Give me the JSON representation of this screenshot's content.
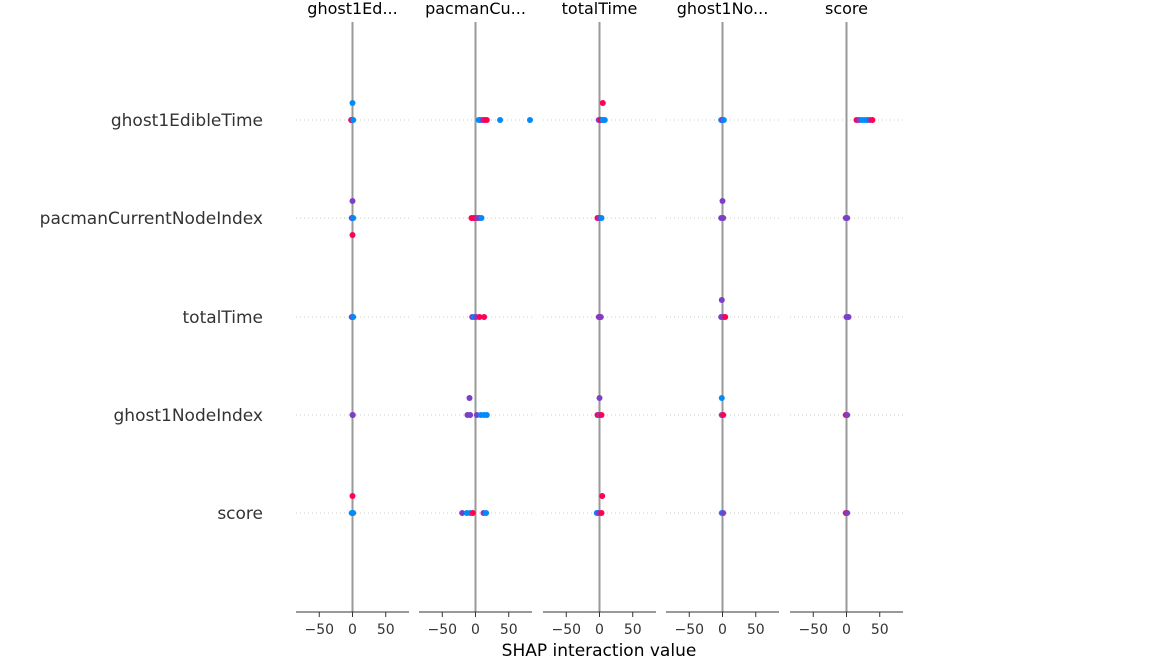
{
  "chart_data": {
    "type": "scatter",
    "xlabel": "SHAP interaction value",
    "features": [
      "ghost1EdibleTime",
      "pacmanCurrentNodeIndex",
      "totalTime",
      "ghost1NodeIndex",
      "score"
    ],
    "panel_titles": [
      "ghost1Ed...",
      "pacmanCu...",
      "totalTime",
      "ghost1No...",
      "score"
    ],
    "xlim": [
      -85,
      85
    ],
    "xticks": [
      -50,
      0,
      50
    ],
    "xtick_labels": [
      "−50",
      "0",
      "50"
    ],
    "grid": true,
    "colors": {
      "low": "#008bfb",
      "mid": "#7b3fc8",
      "high": "#ff0052",
      "zero_line": "#999999"
    },
    "panels": [
      {
        "title": "ghost1Ed...",
        "rows": [
          [
            [
              0,
              0.0,
              "low"
            ],
            [
              0,
              1.0,
              "low"
            ],
            [
              -2,
              0.0,
              "high"
            ],
            [
              1,
              0.0,
              "low"
            ]
          ],
          [
            [
              0,
              1.0,
              "mid"
            ],
            [
              0,
              0.0,
              "low"
            ],
            [
              -1,
              0.0,
              "mid"
            ],
            [
              1,
              0.0,
              "low"
            ],
            [
              0,
              -1.0,
              "high"
            ]
          ],
          [
            [
              0,
              0.0,
              "low"
            ],
            [
              -1,
              0.0,
              "mid"
            ],
            [
              1,
              0.0,
              "low"
            ]
          ],
          [
            [
              0,
              0.0,
              "mid"
            ],
            [
              0.5,
              0.0,
              "mid"
            ]
          ],
          [
            [
              0,
              1.0,
              "high"
            ],
            [
              0,
              0.0,
              "low"
            ],
            [
              -1,
              0.0,
              "low"
            ],
            [
              1,
              0.0,
              "low"
            ]
          ]
        ]
      },
      {
        "title": "pacmanCu...",
        "rows": [
          [
            [
              5,
              0.0,
              "low"
            ],
            [
              8,
              0.0,
              "low"
            ],
            [
              11,
              0.0,
              "mid"
            ],
            [
              14,
              0.0,
              "high"
            ],
            [
              17,
              0.0,
              "high"
            ],
            [
              37,
              0.0,
              "low"
            ],
            [
              82,
              0.0,
              "low"
            ]
          ],
          [
            [
              -6,
              0.0,
              "high"
            ],
            [
              -3,
              0.0,
              "high"
            ],
            [
              0,
              0.0,
              "high"
            ],
            [
              3,
              0.0,
              "mid"
            ],
            [
              6,
              0.0,
              "mid"
            ],
            [
              9,
              0.0,
              "low"
            ]
          ],
          [
            [
              -5,
              0.0,
              "mid"
            ],
            [
              -2,
              0.0,
              "low"
            ],
            [
              1,
              0.0,
              "mid"
            ],
            [
              6,
              0.0,
              "high"
            ],
            [
              13,
              0.0,
              "high"
            ]
          ],
          [
            [
              -9,
              1.0,
              "mid"
            ],
            [
              -12,
              0.0,
              "mid"
            ],
            [
              -8,
              0.0,
              "mid"
            ],
            [
              2,
              0.0,
              "mid"
            ],
            [
              8,
              0.0,
              "low"
            ],
            [
              13,
              0.0,
              "low"
            ],
            [
              17,
              0.0,
              "low"
            ]
          ],
          [
            [
              -20,
              0.0,
              "mid"
            ],
            [
              -13,
              0.0,
              "low"
            ],
            [
              -8,
              0.0,
              "low"
            ],
            [
              -4,
              0.0,
              "high"
            ],
            [
              12,
              0.0,
              "mid"
            ],
            [
              16,
              0.0,
              "low"
            ]
          ]
        ]
      },
      {
        "title": "totalTime",
        "rows": [
          [
            [
              5,
              1.0,
              "high"
            ],
            [
              -1,
              0.0,
              "mid"
            ],
            [
              2,
              0.0,
              "high"
            ],
            [
              5,
              0.0,
              "low"
            ],
            [
              8,
              0.0,
              "low"
            ]
          ],
          [
            [
              -3,
              0.0,
              "high"
            ],
            [
              0,
              0.0,
              "mid"
            ],
            [
              3,
              0.0,
              "low"
            ]
          ],
          [
            [
              -1,
              0.0,
              "mid"
            ],
            [
              1,
              0.0,
              "high"
            ],
            [
              2,
              0.0,
              "mid"
            ]
          ],
          [
            [
              0,
              1.0,
              "mid"
            ],
            [
              -3,
              0.0,
              "high"
            ],
            [
              0,
              0.0,
              "mid"
            ],
            [
              3,
              0.0,
              "high"
            ]
          ],
          [
            [
              4,
              1.0,
              "high"
            ],
            [
              -4,
              0.0,
              "low"
            ],
            [
              -1,
              0.0,
              "mid"
            ],
            [
              3,
              0.0,
              "high"
            ]
          ]
        ]
      },
      {
        "title": "ghost1No...",
        "rows": [
          [
            [
              -2,
              0.0,
              "low"
            ],
            [
              0,
              0.0,
              "mid"
            ],
            [
              2,
              0.0,
              "low"
            ]
          ],
          [
            [
              0,
              1.0,
              "mid"
            ],
            [
              -2,
              0.0,
              "mid"
            ],
            [
              1,
              0.0,
              "mid"
            ]
          ],
          [
            [
              -1,
              1.0,
              "mid"
            ],
            [
              -2,
              0.0,
              "mid"
            ],
            [
              1,
              0.0,
              "mid"
            ],
            [
              4,
              0.0,
              "high"
            ]
          ],
          [
            [
              -1,
              1.0,
              "low"
            ],
            [
              -1,
              0.0,
              "mid"
            ],
            [
              1,
              0.0,
              "high"
            ]
          ],
          [
            [
              -1,
              0.0,
              "low"
            ],
            [
              1,
              0.0,
              "mid"
            ]
          ]
        ]
      },
      {
        "title": "score",
        "rows": [
          [
            [
              15,
              0.0,
              "high"
            ],
            [
              19,
              0.0,
              "mid"
            ],
            [
              23,
              0.0,
              "low"
            ],
            [
              27,
              0.0,
              "low"
            ],
            [
              31,
              0.0,
              "low"
            ],
            [
              35,
              0.0,
              "mid"
            ],
            [
              39,
              0.0,
              "high"
            ]
          ],
          [
            [
              -1,
              0.0,
              "mid"
            ],
            [
              1,
              0.0,
              "mid"
            ]
          ],
          [
            [
              0,
              0.0,
              "mid"
            ],
            [
              3,
              0.0,
              "mid"
            ]
          ],
          [
            [
              -1,
              0.0,
              "high"
            ],
            [
              1,
              0.0,
              "mid"
            ]
          ],
          [
            [
              -1,
              0.0,
              "high"
            ],
            [
              1,
              0.0,
              "mid"
            ]
          ]
        ]
      }
    ]
  }
}
